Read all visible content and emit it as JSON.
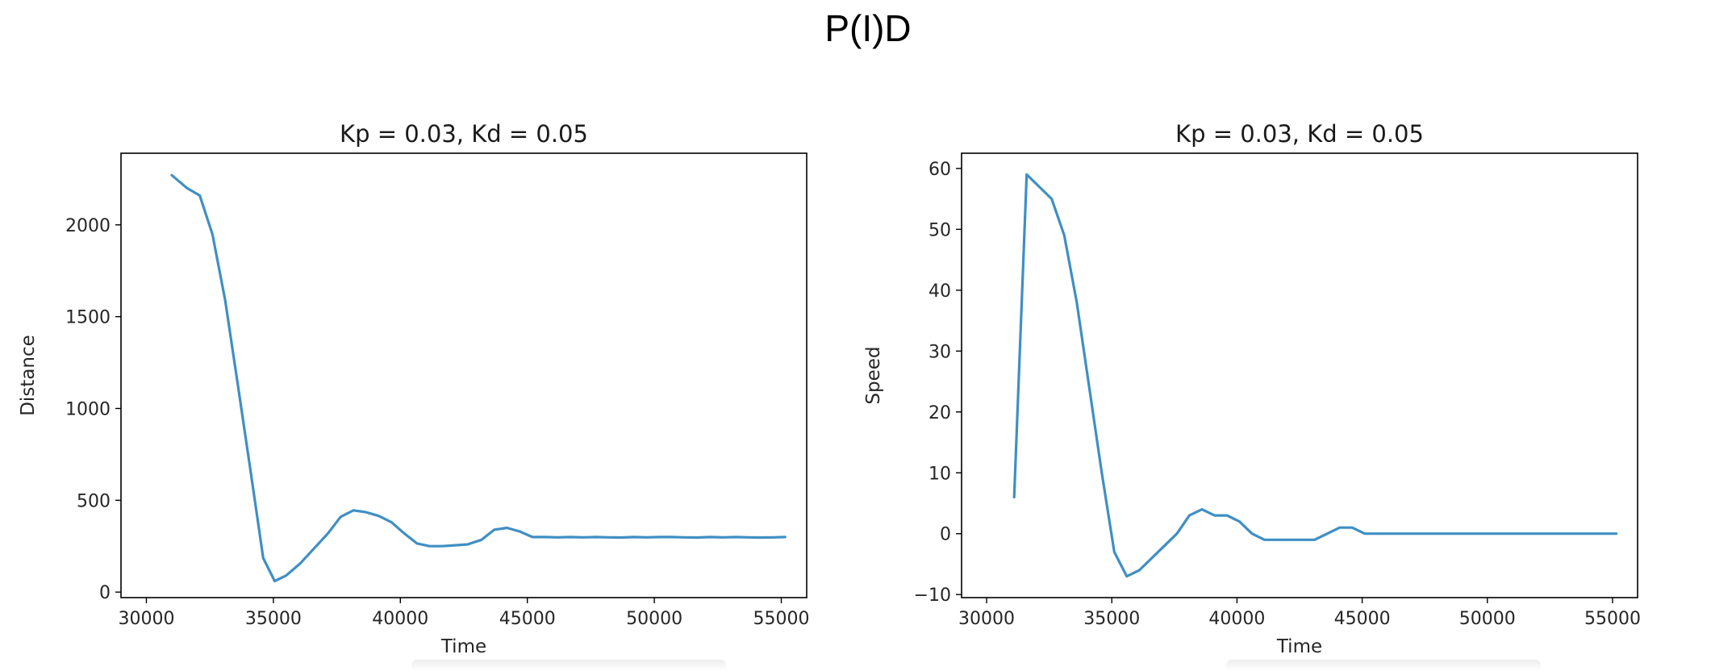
{
  "page_title": "P(I)D",
  "chart_data": [
    {
      "type": "line",
      "title": "Kp = 0.03, Kd = 0.05",
      "xlabel": "Time",
      "ylabel": "Distance",
      "xlim": [
        29000,
        56000
      ],
      "ylim": [
        -30,
        2390
      ],
      "xticks": [
        30000,
        35000,
        40000,
        45000,
        50000,
        55000
      ],
      "yticks": [
        0,
        500,
        1000,
        1500,
        2000
      ],
      "grid": false,
      "color": "#3f8fc4",
      "series": [
        {
          "x": [
            31000,
            31600,
            32100,
            32600,
            33100,
            33600,
            34100,
            34600,
            35050,
            35500,
            36050,
            36650,
            37150,
            37650,
            38150,
            38650,
            39150,
            39650,
            40150,
            40650,
            41150,
            41650,
            42150,
            42650,
            43200,
            43700,
            44200,
            44700,
            45200,
            45700,
            46200,
            46700,
            47200,
            47700,
            48200,
            48700,
            49200,
            49700,
            50200,
            50700,
            51200,
            51700,
            52200,
            52700,
            53200,
            53700,
            54200,
            54700,
            55150
          ],
          "y": [
            2270,
            2200,
            2160,
            1950,
            1590,
            1130,
            660,
            185,
            60,
            90,
            155,
            245,
            320,
            410,
            445,
            435,
            415,
            380,
            320,
            265,
            250,
            250,
            255,
            260,
            285,
            340,
            350,
            330,
            300,
            300,
            298,
            300,
            298,
            300,
            298,
            297,
            300,
            298,
            300,
            300,
            298,
            297,
            300,
            298,
            300,
            298,
            297,
            298,
            300
          ]
        }
      ]
    },
    {
      "type": "line",
      "title": "Kp = 0.03, Kd = 0.05",
      "xlabel": "Time",
      "ylabel": "Speed",
      "xlim": [
        29000,
        56000
      ],
      "ylim": [
        -10.5,
        62.5
      ],
      "xticks": [
        30000,
        35000,
        40000,
        45000,
        50000,
        55000
      ],
      "yticks": [
        -10,
        0,
        10,
        20,
        30,
        40,
        50,
        60
      ],
      "grid": false,
      "color": "#3f8fc4",
      "series": [
        {
          "x": [
            31100,
            31600,
            32600,
            33100,
            33600,
            34100,
            34600,
            35100,
            35600,
            36100,
            37100,
            37600,
            38100,
            38600,
            39100,
            39600,
            40100,
            40600,
            41100,
            43100,
            44100,
            44600,
            45100,
            55150
          ],
          "y": [
            6,
            59,
            55,
            49,
            38,
            24,
            10,
            -3,
            -7,
            -6,
            -2,
            0,
            3,
            4,
            3,
            3,
            2,
            0,
            -1,
            -1,
            1,
            1,
            0,
            0
          ]
        }
      ]
    }
  ]
}
